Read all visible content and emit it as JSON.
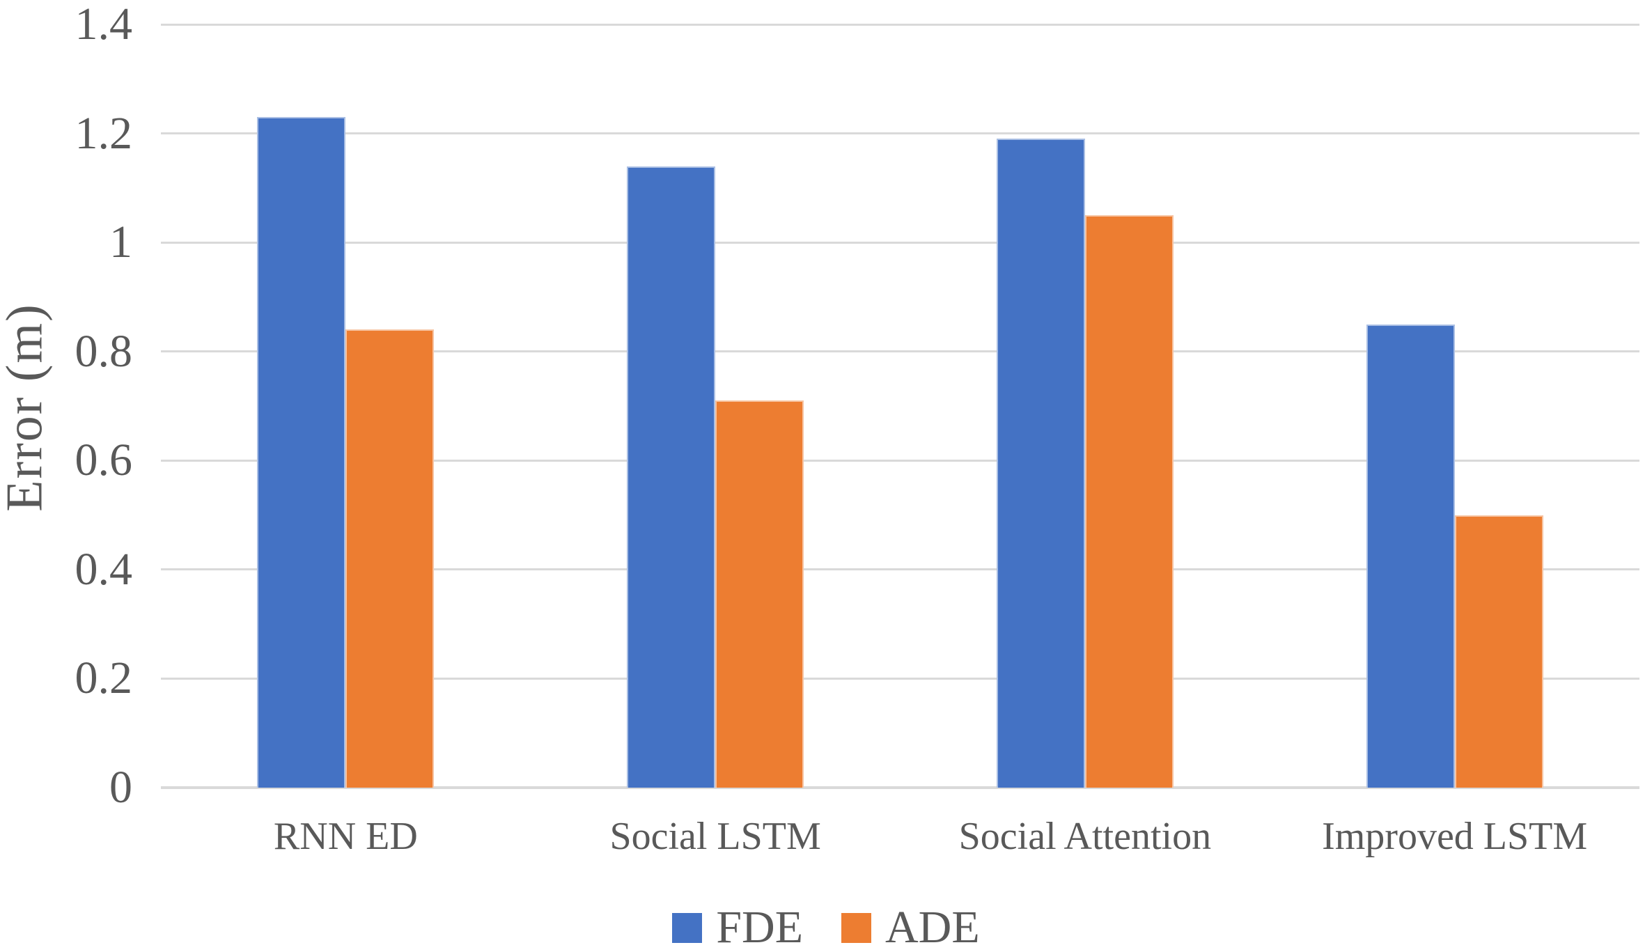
{
  "chart_data": {
    "type": "bar",
    "title": "",
    "ylabel": "Error (m)",
    "xlabel": "",
    "categories": [
      "RNN ED",
      "Social LSTM",
      "Social Attention",
      "Improved LSTM"
    ],
    "series": [
      {
        "name": "FDE",
        "color": "#4472C4",
        "values": [
          1.23,
          1.14,
          1.19,
          0.85
        ]
      },
      {
        "name": "ADE",
        "color": "#ED7D31",
        "values": [
          0.84,
          0.71,
          1.05,
          0.5
        ]
      }
    ],
    "ylim": [
      0,
      1.4
    ],
    "yticks": [
      {
        "value": 0,
        "label": "0"
      },
      {
        "value": 0.2,
        "label": "0.2"
      },
      {
        "value": 0.4,
        "label": "0.4"
      },
      {
        "value": 0.6,
        "label": "0.6"
      },
      {
        "value": 0.8,
        "label": "0.8"
      },
      {
        "value": 1,
        "label": "1"
      },
      {
        "value": 1.2,
        "label": "1.2"
      },
      {
        "value": 1.4,
        "label": "1.4"
      }
    ],
    "grid": true,
    "legend_position": "bottom",
    "colors": {
      "gridline": "#D9D9D9",
      "text": "#595959",
      "background": "#FFFFFF"
    }
  }
}
